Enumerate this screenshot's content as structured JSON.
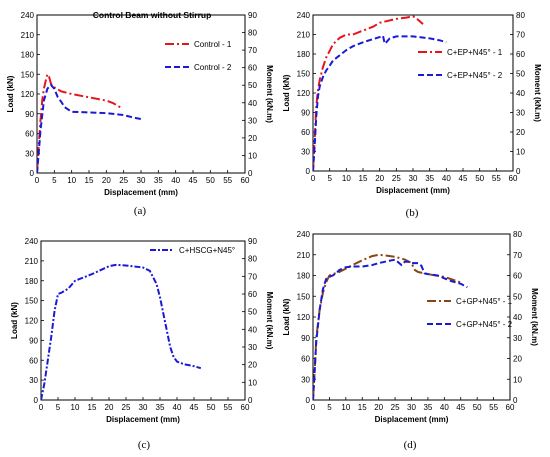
{
  "chart_data": [
    {
      "panel": "a",
      "type": "line",
      "caption": "(a)",
      "title": "Control Beam without Stirrup",
      "xlabel": "Displacement (mm)",
      "ylabel": "Load (kN)",
      "ylabel_right": "Moment (kN.m)",
      "xlim": [
        0,
        60
      ],
      "ylim": [
        0,
        240
      ],
      "ylim_right": [
        0,
        90
      ],
      "xticks": [
        "0",
        "5",
        "10",
        "15",
        "20",
        "25",
        "30",
        "35",
        "40",
        "45",
        "50",
        "55",
        "60"
      ],
      "yticks": [
        "0",
        "30",
        "60",
        "90",
        "120",
        "150",
        "180",
        "210",
        "240"
      ],
      "yticks_right": [
        "0",
        "10",
        "20",
        "30",
        "40",
        "50",
        "60",
        "70",
        "80",
        "90"
      ],
      "legend_position": "right",
      "series": [
        {
          "name": "Control - 1",
          "color": "#e8141b",
          "dash": "long-dash-dot",
          "x": [
            0,
            0.5,
            1,
            1.5,
            2,
            2.5,
            3,
            3.5,
            4,
            5,
            7,
            10,
            15,
            20,
            22,
            24
          ],
          "y": [
            0,
            40,
            80,
            110,
            128,
            140,
            150,
            146,
            136,
            130,
            124,
            120,
            115,
            110,
            106,
            100
          ]
        },
        {
          "name": "Control - 2",
          "color": "#1a1ad6",
          "dash": "dash",
          "x": [
            0,
            0.5,
            1,
            2,
            3,
            4,
            5,
            6,
            7,
            8,
            10,
            15,
            20,
            25,
            28,
            30
          ],
          "y": [
            0,
            30,
            65,
            110,
            128,
            134,
            128,
            115,
            108,
            100,
            93,
            92,
            91,
            88,
            84,
            82
          ]
        }
      ]
    },
    {
      "panel": "b",
      "type": "line",
      "caption": "(b)",
      "title": "",
      "xlabel": "Displacement (mm)",
      "ylabel": "Load (kN)",
      "ylabel_right": "Moment (kN.m)",
      "xlim": [
        0,
        60
      ],
      "ylim": [
        0,
        240
      ],
      "ylim_right": [
        0,
        80
      ],
      "xticks": [
        "0",
        "5",
        "10",
        "15",
        "20",
        "25",
        "30",
        "35",
        "40",
        "45",
        "50",
        "55",
        "60"
      ],
      "yticks": [
        "0",
        "30",
        "60",
        "90",
        "120",
        "150",
        "180",
        "210",
        "240"
      ],
      "yticks_right": [
        "0",
        "10",
        "20",
        "30",
        "40",
        "50",
        "60",
        "70",
        "80"
      ],
      "legend_position": "right",
      "series": [
        {
          "name": "C+EP+N45° - 1",
          "color": "#e8141b",
          "dash": "long-dash-dot",
          "x": [
            0,
            0.5,
            1,
            1.5,
            2,
            3,
            4,
            5,
            6,
            8,
            10,
            12,
            15,
            18,
            20,
            25,
            28,
            30,
            31,
            33
          ],
          "y": [
            0,
            50,
            100,
            125,
            140,
            160,
            175,
            185,
            195,
            205,
            210,
            210,
            216,
            222,
            228,
            234,
            236,
            238,
            235,
            226
          ]
        },
        {
          "name": "C+EP+N45° - 2",
          "color": "#1a1ad6",
          "dash": "dash",
          "x": [
            0,
            0.5,
            1,
            1.5,
            2,
            3,
            4,
            5,
            6,
            8,
            10,
            12,
            15,
            18,
            20,
            21,
            21.5,
            22,
            23,
            25,
            30,
            35,
            38,
            40
          ],
          "y": [
            0,
            40,
            85,
            115,
            130,
            145,
            155,
            162,
            170,
            178,
            186,
            192,
            198,
            203,
            206,
            208,
            196,
            198,
            204,
            207,
            207,
            204,
            201,
            198
          ]
        }
      ]
    },
    {
      "panel": "c",
      "type": "line",
      "caption": "(c)",
      "title": "",
      "xlabel": "Displacement (mm)",
      "ylabel": "Load (kN)",
      "ylabel_right": "Moment (kN.m)",
      "xlim": [
        0,
        60
      ],
      "ylim": [
        0,
        240
      ],
      "ylim_right": [
        0,
        90
      ],
      "xticks": [
        "0",
        "5",
        "10",
        "15",
        "20",
        "25",
        "30",
        "35",
        "40",
        "45",
        "50",
        "55",
        "60"
      ],
      "yticks": [
        "0",
        "30",
        "60",
        "90",
        "120",
        "150",
        "180",
        "210",
        "240"
      ],
      "yticks_right": [
        "0",
        "10",
        "20",
        "30",
        "40",
        "50",
        "60",
        "70",
        "80",
        "90"
      ],
      "legend_position": "top-right",
      "series": [
        {
          "name": "C+HSCG+N45°",
          "color": "#1a1ad6",
          "dash": "dash-dot",
          "x": [
            0,
            1,
            2,
            3,
            4,
            5,
            6,
            8,
            10,
            15,
            20,
            22,
            25,
            30,
            32,
            33,
            34,
            35,
            36,
            37,
            38,
            39,
            40,
            42,
            45,
            47
          ],
          "y": [
            0,
            25,
            60,
            95,
            135,
            160,
            162,
            168,
            180,
            190,
            202,
            204,
            203,
            200,
            195,
            185,
            175,
            155,
            130,
            105,
            80,
            65,
            58,
            54,
            51,
            48
          ]
        }
      ]
    },
    {
      "panel": "d",
      "type": "line",
      "caption": "(d)",
      "title": "",
      "xlabel": "Displacement (mm)",
      "ylabel": "Load (kN)",
      "ylabel_right": "Moment (kN.m)",
      "xlim": [
        0,
        60
      ],
      "ylim": [
        0,
        240
      ],
      "ylim_right": [
        0,
        80
      ],
      "xticks": [
        "0",
        "5",
        "10",
        "15",
        "20",
        "25",
        "30",
        "35",
        "40",
        "45",
        "50",
        "55",
        "60"
      ],
      "yticks": [
        "0",
        "30",
        "60",
        "90",
        "120",
        "150",
        "180",
        "210",
        "240"
      ],
      "yticks_right": [
        "0",
        "10",
        "20",
        "30",
        "40",
        "50",
        "60",
        "70",
        "80"
      ],
      "legend_position": "right",
      "series": [
        {
          "name": "C+GP+N45° - 1",
          "color": "#8b4513",
          "dash": "long-dash-dot",
          "x": [
            0,
            0.5,
            1,
            2,
            3,
            4,
            5,
            6,
            8,
            10,
            12,
            15,
            18,
            20,
            22,
            25,
            28,
            30,
            31,
            32,
            35,
            40,
            45
          ],
          "y": [
            0,
            40,
            90,
            130,
            155,
            170,
            180,
            182,
            185,
            190,
            195,
            202,
            208,
            210,
            209,
            207,
            203,
            198,
            188,
            185,
            182,
            178,
            170
          ]
        },
        {
          "name": "C+GP+N45° - 2",
          "color": "#1a1ad6",
          "dash": "dash",
          "x": [
            0,
            0.5,
            1,
            2,
            3,
            4,
            5,
            6,
            7,
            8,
            10,
            12,
            15,
            18,
            20,
            22,
            25,
            27,
            28,
            29,
            30,
            32,
            33,
            34,
            35,
            38,
            40,
            42,
            45,
            47
          ],
          "y": [
            0,
            40,
            85,
            130,
            160,
            175,
            178,
            180,
            183,
            188,
            192,
            193,
            193,
            195,
            198,
            200,
            203,
            195,
            200,
            200,
            198,
            198,
            194,
            183,
            182,
            180,
            176,
            172,
            168,
            163
          ]
        }
      ]
    }
  ]
}
